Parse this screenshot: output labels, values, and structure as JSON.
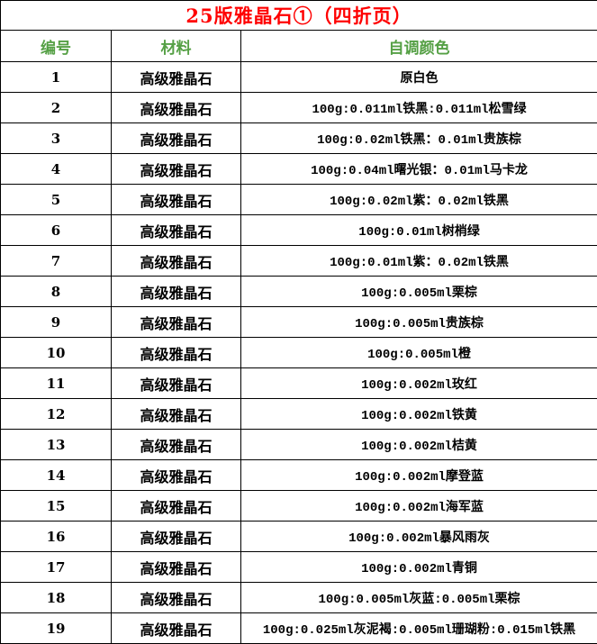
{
  "title": "25版雅晶石①（四折页）",
  "colors": {
    "title_text": "#ff0000",
    "header_text": "#55a045",
    "body_text": "#000000",
    "border": "#000000",
    "background": "#ffffff"
  },
  "table": {
    "headers": [
      "编号",
      "材料",
      "自调颜色"
    ],
    "rows": [
      {
        "id": "1",
        "material": "高级雅晶石",
        "color": "原白色"
      },
      {
        "id": "2",
        "material": "高级雅晶石",
        "color": "100g:0.011ml铁黑:0.011ml松雪绿"
      },
      {
        "id": "3",
        "material": "高级雅晶石",
        "color": "100g:0.02ml铁黑：0.01ml贵族棕"
      },
      {
        "id": "4",
        "material": "高级雅晶石",
        "color": "100g:0.04ml曙光银：0.01ml马卡龙"
      },
      {
        "id": "5",
        "material": "高级雅晶石",
        "color": "100g:0.02ml紫：0.02ml铁黑"
      },
      {
        "id": "6",
        "material": "高级雅晶石",
        "color": "100g:0.01ml树梢绿"
      },
      {
        "id": "7",
        "material": "高级雅晶石",
        "color": "100g:0.01ml紫：0.02ml铁黑"
      },
      {
        "id": "8",
        "material": "高级雅晶石",
        "color": "100g:0.005ml栗棕"
      },
      {
        "id": "9",
        "material": "高级雅晶石",
        "color": "100g:0.005ml贵族棕"
      },
      {
        "id": "10",
        "material": "高级雅晶石",
        "color": "100g:0.005ml橙"
      },
      {
        "id": "11",
        "material": "高级雅晶石",
        "color": "100g:0.002ml玫红"
      },
      {
        "id": "12",
        "material": "高级雅晶石",
        "color": "100g:0.002ml铁黄"
      },
      {
        "id": "13",
        "material": "高级雅晶石",
        "color": "100g:0.002ml桔黄"
      },
      {
        "id": "14",
        "material": "高级雅晶石",
        "color": "100g:0.002ml摩登蓝"
      },
      {
        "id": "15",
        "material": "高级雅晶石",
        "color": "100g:0.002ml海军蓝"
      },
      {
        "id": "16",
        "material": "高级雅晶石",
        "color": "100g:0.002ml暴风雨灰"
      },
      {
        "id": "17",
        "material": "高级雅晶石",
        "color": "100g:0.002ml青铜"
      },
      {
        "id": "18",
        "material": "高级雅晶石",
        "color": "100g:0.005ml灰蓝:0.005ml栗棕"
      },
      {
        "id": "19",
        "material": "高级雅晶石",
        "color": "100g:0.025ml灰泥褐:0.005ml珊瑚粉:0.015ml铁黑"
      }
    ]
  }
}
